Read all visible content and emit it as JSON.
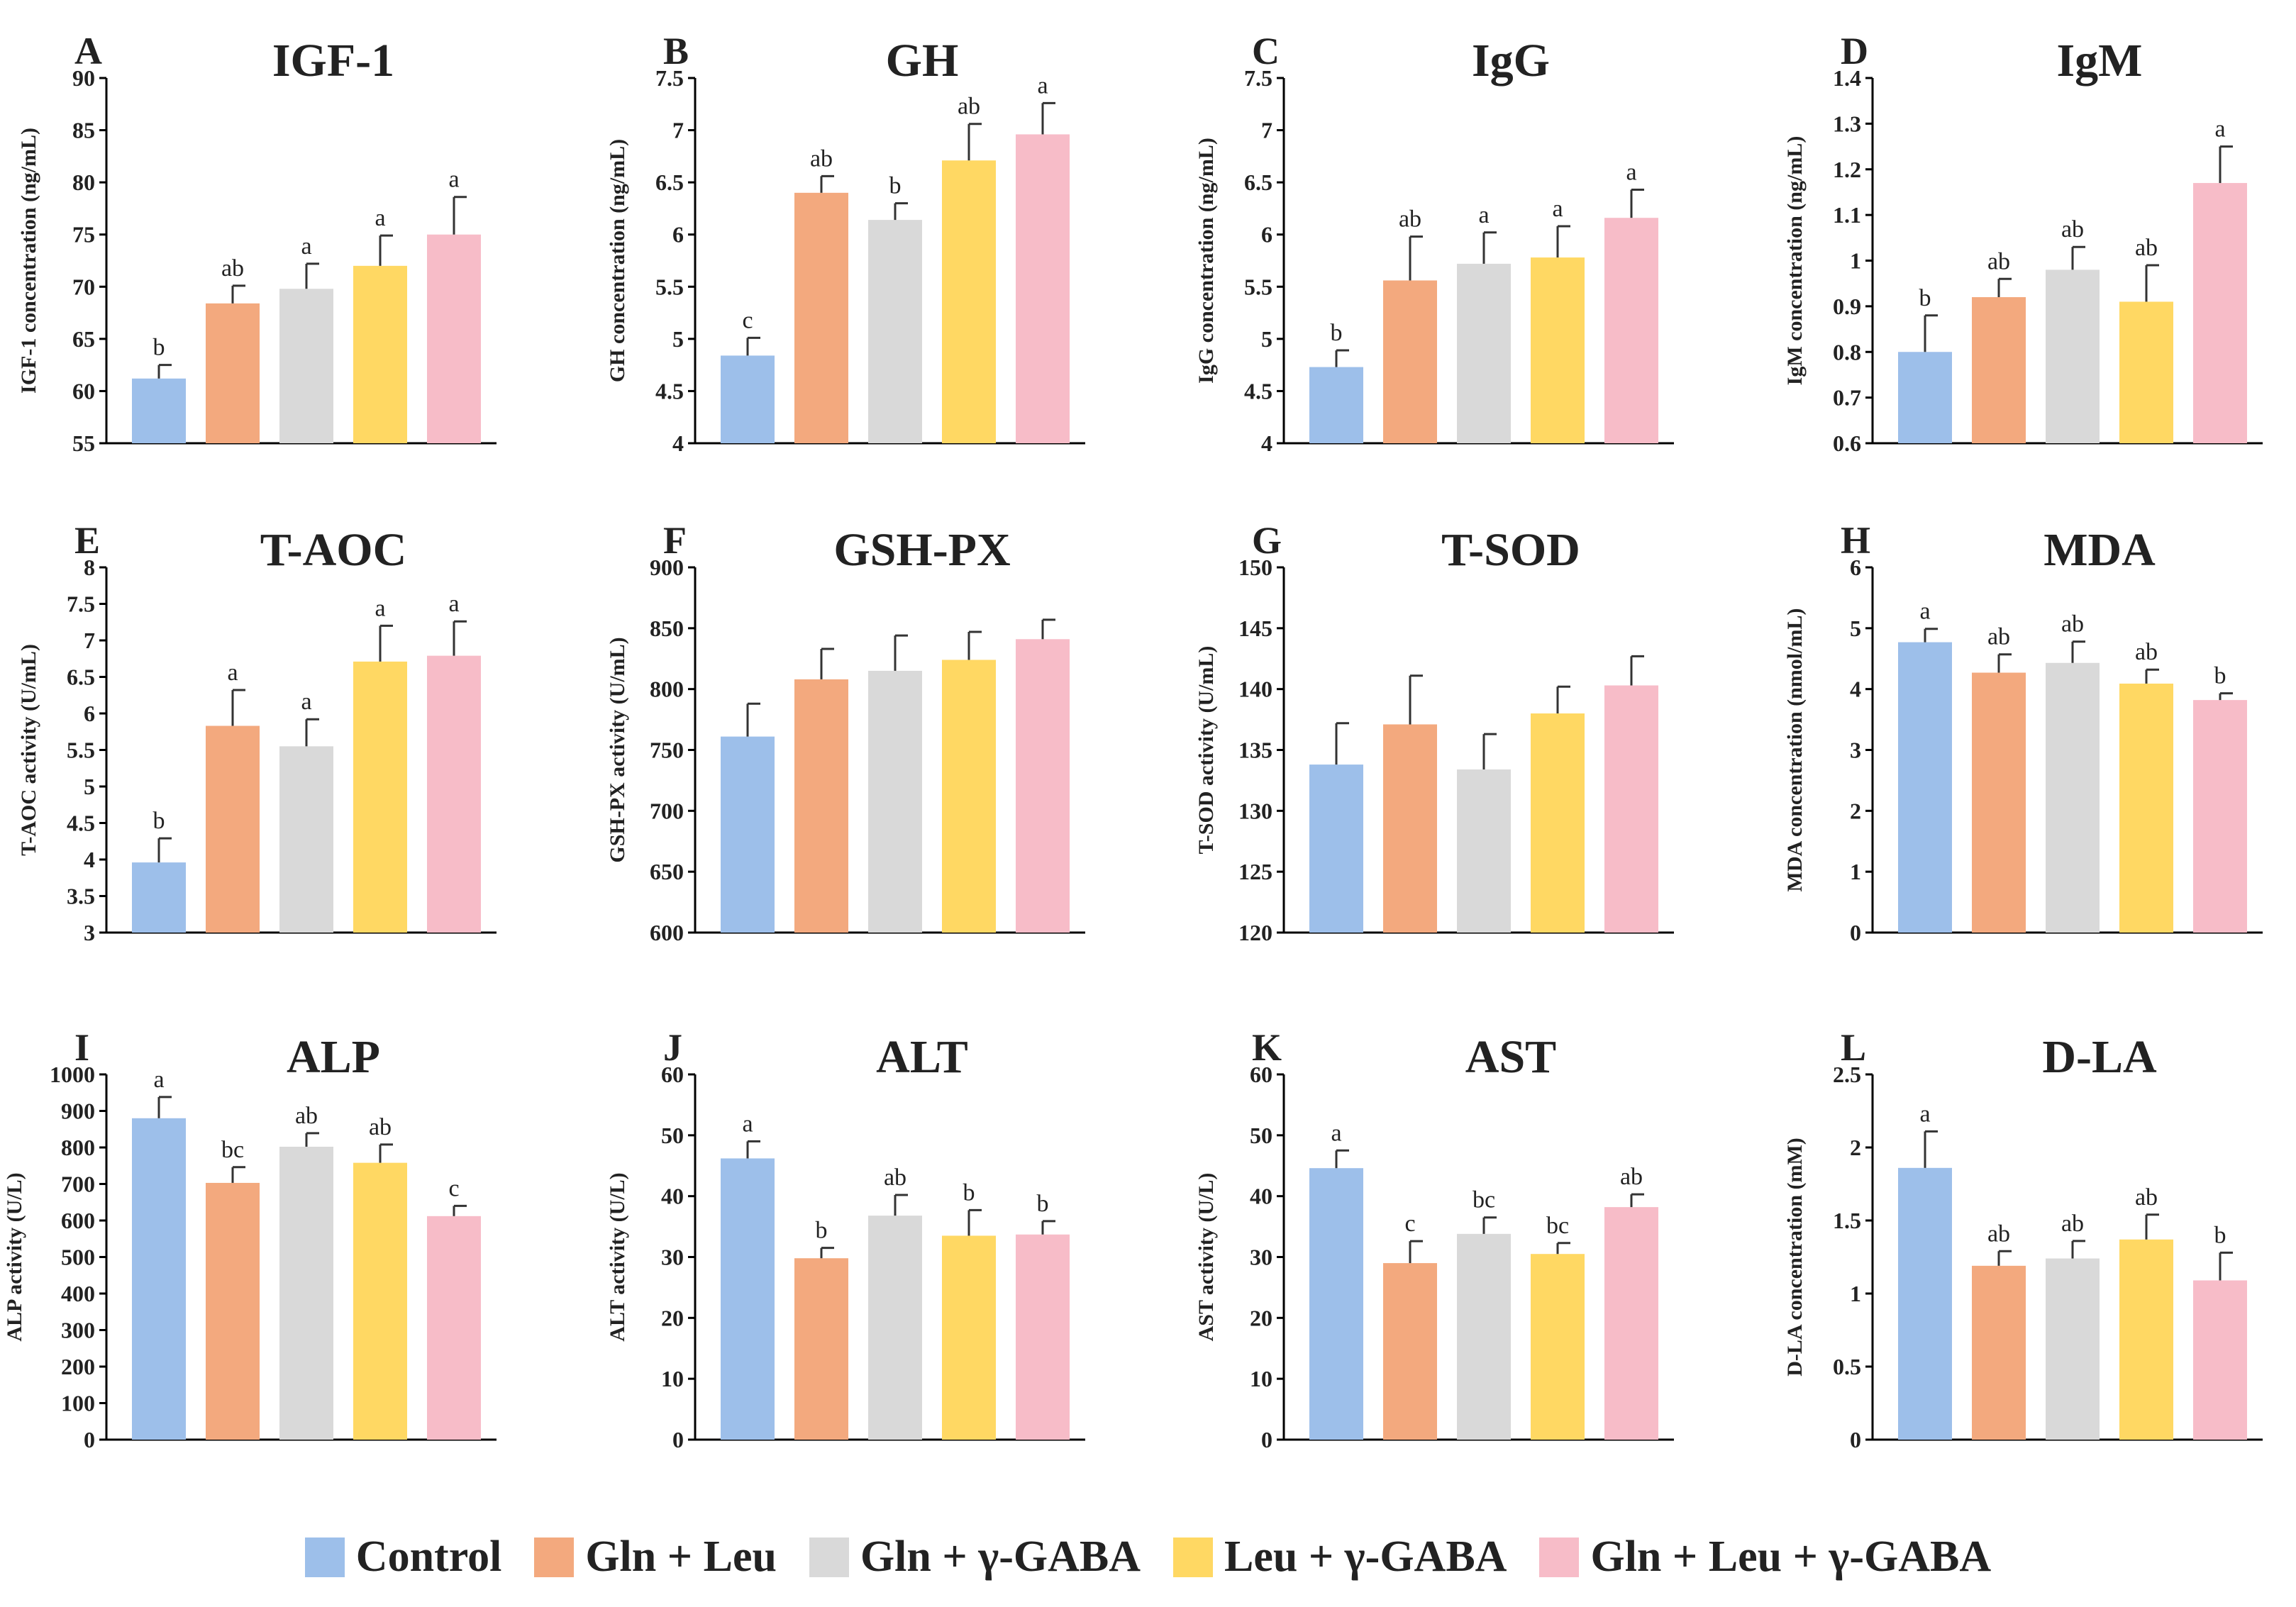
{
  "colors": {
    "bars": [
      "#9dbfea",
      "#f3a97e",
      "#d9d9d9",
      "#ffd863",
      "#f7bcc8"
    ],
    "axis": "#000000",
    "text": "#222222",
    "errorbar": "#333333"
  },
  "legend": {
    "items": [
      {
        "label": "Control",
        "color": "#9dbfea"
      },
      {
        "label": "Gln + Leu",
        "color": "#f3a97e"
      },
      {
        "label": "Gln + γ-GABA",
        "color": "#d9d9d9"
      },
      {
        "label": "Leu + γ-GABA",
        "color": "#ffd863"
      },
      {
        "label": "Gln + Leu + γ-GABA",
        "color": "#f7bcc8"
      }
    ]
  },
  "chart_data": [
    {
      "type": "bar",
      "panel": "A",
      "title": "IGF-1",
      "ylabel": "IGF-1 concentration (ng/mL)",
      "ylim": [
        55,
        90
      ],
      "ticks": [
        "55",
        "60",
        "65",
        "70",
        "75",
        "80",
        "85",
        "90"
      ],
      "categories": [
        "Control",
        "Gln + Leu",
        "Gln + γ-GABA",
        "Leu + γ-GABA",
        "Gln + Leu + γ-GABA"
      ],
      "values": [
        61.2,
        68.4,
        69.8,
        72.0,
        75.0
      ],
      "errors": [
        1.3,
        1.7,
        2.4,
        2.9,
        3.6
      ],
      "letters": [
        "b",
        "ab",
        "a",
        "a",
        "a"
      ]
    },
    {
      "type": "bar",
      "panel": "B",
      "title": "GH",
      "ylabel": "GH concentration (ng/mL)",
      "ylim": [
        4,
        7.5
      ],
      "ticks": [
        "4",
        "4.5",
        "5",
        "5.5",
        "6",
        "6.5",
        "7",
        "7.5"
      ],
      "categories": [
        "Control",
        "Gln + Leu",
        "Gln + γ-GABA",
        "Leu + γ-GABA",
        "Gln + Leu + γ-GABA"
      ],
      "values": [
        4.84,
        6.4,
        6.14,
        6.71,
        6.96
      ],
      "errors": [
        0.17,
        0.16,
        0.16,
        0.35,
        0.3
      ],
      "letters": [
        "c",
        "ab",
        "b",
        "ab",
        "a"
      ]
    },
    {
      "type": "bar",
      "panel": "C",
      "title": "IgG",
      "ylabel": "IgG concentration (ng/mL)",
      "ylim": [
        4,
        7.5
      ],
      "ticks": [
        "4",
        "4.5",
        "5",
        "5.5",
        "6",
        "6.5",
        "7",
        "7.5"
      ],
      "categories": [
        "Control",
        "Gln + Leu",
        "Gln + γ-GABA",
        "Leu + γ-GABA",
        "Gln + Leu + γ-GABA"
      ],
      "values": [
        4.73,
        5.56,
        5.72,
        5.78,
        6.16
      ],
      "errors": [
        0.16,
        0.42,
        0.3,
        0.3,
        0.27
      ],
      "letters": [
        "b",
        "ab",
        "a",
        "a",
        "a"
      ]
    },
    {
      "type": "bar",
      "panel": "D",
      "title": "IgM",
      "ylabel": "IgM concentration (ng/mL)",
      "ylim": [
        0.6,
        1.4
      ],
      "ticks": [
        "0.6",
        "0.7",
        "0.8",
        "0.9",
        "1",
        "1.1",
        "1.2",
        "1.3",
        "1.4"
      ],
      "categories": [
        "Control",
        "Gln + Leu",
        "Gln + γ-GABA",
        "Leu + γ-GABA",
        "Gln + Leu + γ-GABA"
      ],
      "values": [
        0.8,
        0.92,
        0.98,
        0.91,
        1.17
      ],
      "errors": [
        0.08,
        0.04,
        0.05,
        0.08,
        0.08
      ],
      "letters": [
        "b",
        "ab",
        "ab",
        "ab",
        "a"
      ]
    },
    {
      "type": "bar",
      "panel": "E",
      "title": "T-AOC",
      "ylabel": "T-AOC activity (U/mL)",
      "ylim": [
        3,
        8
      ],
      "ticks": [
        "3",
        "3.5",
        "4",
        "4.5",
        "5",
        "5.5",
        "6",
        "6.5",
        "7",
        "7.5",
        "8"
      ],
      "categories": [
        "Control",
        "Gln + Leu",
        "Gln + γ-GABA",
        "Leu + γ-GABA",
        "Gln + Leu + γ-GABA"
      ],
      "values": [
        3.96,
        5.83,
        5.55,
        6.71,
        6.79
      ],
      "errors": [
        0.33,
        0.49,
        0.37,
        0.49,
        0.47
      ],
      "letters": [
        "b",
        "a",
        "a",
        "a",
        "a"
      ]
    },
    {
      "type": "bar",
      "panel": "F",
      "title": "GSH-PX",
      "ylabel": "GSH-PX activity (U/mL)",
      "ylim": [
        600,
        900
      ],
      "ticks": [
        "600",
        "650",
        "700",
        "750",
        "800",
        "850",
        "900"
      ],
      "categories": [
        "Control",
        "Gln + Leu",
        "Gln + γ-GABA",
        "Leu + γ-GABA",
        "Gln + Leu + γ-GABA"
      ],
      "values": [
        761,
        808,
        815,
        824,
        841
      ],
      "errors": [
        27,
        25,
        29,
        23,
        16
      ],
      "letters": [
        "",
        "",
        "",
        "",
        ""
      ]
    },
    {
      "type": "bar",
      "panel": "G",
      "title": "T-SOD",
      "ylabel": "T-SOD activity (U/mL)",
      "ylim": [
        120,
        150
      ],
      "ticks": [
        "120",
        "125",
        "130",
        "135",
        "140",
        "145",
        "150"
      ],
      "categories": [
        "Control",
        "Gln + Leu",
        "Gln + γ-GABA",
        "Leu + γ-GABA",
        "Gln + Leu + γ-GABA"
      ],
      "values": [
        133.8,
        137.1,
        133.4,
        138.0,
        140.3
      ],
      "errors": [
        3.4,
        4.0,
        2.9,
        2.2,
        2.4
      ],
      "letters": [
        "",
        "",
        "",
        "",
        ""
      ]
    },
    {
      "type": "bar",
      "panel": "H",
      "title": "MDA",
      "ylabel": "MDA concentration (nmol/mL)",
      "ylim": [
        0,
        6
      ],
      "ticks": [
        "0",
        "1",
        "2",
        "3",
        "4",
        "5",
        "6"
      ],
      "categories": [
        "Control",
        "Gln + Leu",
        "Gln + γ-GABA",
        "Leu + γ-GABA",
        "Gln + Leu + γ-GABA"
      ],
      "values": [
        4.77,
        4.27,
        4.43,
        4.09,
        3.82
      ],
      "errors": [
        0.22,
        0.3,
        0.35,
        0.23,
        0.11
      ],
      "letters": [
        "a",
        "ab",
        "ab",
        "ab",
        "b"
      ]
    },
    {
      "type": "bar",
      "panel": "I",
      "title": "ALP",
      "ylabel": "ALP activity (U/L)",
      "ylim": [
        0,
        1000
      ],
      "ticks": [
        "0",
        "100",
        "200",
        "300",
        "400",
        "500",
        "600",
        "700",
        "800",
        "900",
        "1000"
      ],
      "categories": [
        "Control",
        "Gln + Leu",
        "Gln + γ-GABA",
        "Leu + γ-GABA",
        "Gln + Leu + γ-GABA"
      ],
      "values": [
        880,
        703,
        802,
        758,
        612
      ],
      "errors": [
        58,
        43,
        37,
        50,
        28
      ],
      "letters": [
        "a",
        "bc",
        "ab",
        "ab",
        "c"
      ]
    },
    {
      "type": "bar",
      "panel": "J",
      "title": "ALT",
      "ylabel": "ALT activity (U/L)",
      "ylim": [
        0,
        60
      ],
      "ticks": [
        "0",
        "10",
        "20",
        "30",
        "40",
        "50",
        "60"
      ],
      "categories": [
        "Control",
        "Gln + Leu",
        "Gln + γ-GABA",
        "Leu + γ-GABA",
        "Gln + Leu + γ-GABA"
      ],
      "values": [
        46.2,
        29.8,
        36.8,
        33.5,
        33.7
      ],
      "errors": [
        2.8,
        1.7,
        3.4,
        4.2,
        2.2
      ],
      "letters": [
        "a",
        "b",
        "ab",
        "b",
        "b"
      ]
    },
    {
      "type": "bar",
      "panel": "K",
      "title": "AST",
      "ylabel": "AST activity (U/L)",
      "ylim": [
        0,
        60
      ],
      "ticks": [
        "0",
        "10",
        "20",
        "30",
        "40",
        "50",
        "60"
      ],
      "categories": [
        "Control",
        "Gln + Leu",
        "Gln + γ-GABA",
        "Leu + γ-GABA",
        "Gln + Leu + γ-GABA"
      ],
      "values": [
        44.6,
        29.0,
        33.8,
        30.5,
        38.2
      ],
      "errors": [
        2.9,
        3.6,
        2.7,
        1.8,
        2.1
      ],
      "letters": [
        "a",
        "c",
        "bc",
        "bc",
        "ab"
      ]
    },
    {
      "type": "bar",
      "panel": "L",
      "title": "D-LA",
      "ylabel": "D-LA concentration (mM)",
      "ylim": [
        0,
        2.5
      ],
      "ticks": [
        "0",
        "0.5",
        "1",
        "1.5",
        "2",
        "2.5"
      ],
      "categories": [
        "Control",
        "Gln + Leu",
        "Gln + γ-GABA",
        "Leu + γ-GABA",
        "Gln + Leu + γ-GABA"
      ],
      "values": [
        1.86,
        1.19,
        1.24,
        1.37,
        1.09
      ],
      "errors": [
        0.25,
        0.1,
        0.12,
        0.17,
        0.19
      ],
      "letters": [
        "a",
        "ab",
        "ab",
        "ab",
        "b"
      ]
    }
  ]
}
